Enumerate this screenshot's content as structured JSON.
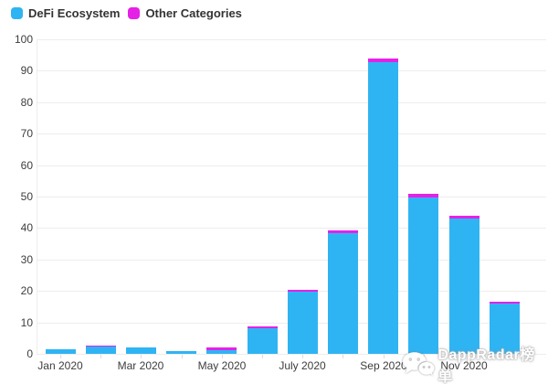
{
  "legend": [
    {
      "label": "DeFi Ecosystem",
      "color": "#2fb4f3"
    },
    {
      "label": "Other Categories",
      "color": "#e621e6"
    }
  ],
  "watermark": {
    "text": "DappRadar榜单",
    "icon": "wechat-icon"
  },
  "chart_data": {
    "type": "bar",
    "stacked": true,
    "title": "",
    "xlabel": "",
    "ylabel": "",
    "categories": [
      "Jan 2020",
      "Feb 2020",
      "Mar 2020",
      "Apr 2020",
      "May 2020",
      "Jun 2020",
      "Jul 2020",
      "Aug 2020",
      "Sep 2020",
      "Oct 2020",
      "Nov 2020",
      "Dec 2020"
    ],
    "x_tick_labels": [
      "Jan 2020",
      "",
      "Mar 2020",
      "",
      "May 2020",
      "",
      "July 2020",
      "",
      "Sep 2020",
      "",
      "Nov 2020",
      ""
    ],
    "series": [
      {
        "name": "DeFi Ecosystem",
        "color": "#2fb4f3",
        "values": [
          1.4,
          2.2,
          1.9,
          1.0,
          1.2,
          8.0,
          19.8,
          38.5,
          92.8,
          49.7,
          43.0,
          16.0
        ]
      },
      {
        "name": "Other Categories",
        "color": "#e621e6",
        "values": [
          0.1,
          0.4,
          0.1,
          0.1,
          0.8,
          0.5,
          0.7,
          1.0,
          1.2,
          1.3,
          1.0,
          0.7
        ]
      }
    ],
    "ylim": [
      0,
      100
    ],
    "y_ticks": [
      0,
      10,
      20,
      30,
      40,
      50,
      60,
      70,
      80,
      90,
      100
    ],
    "grid": true,
    "legend_position": "top-left"
  }
}
